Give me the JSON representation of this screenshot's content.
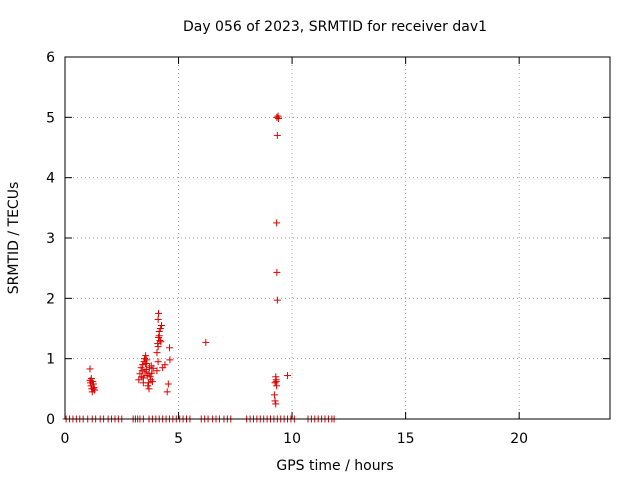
{
  "chart_data": {
    "type": "scatter",
    "title": "Day 056 of 2023, SRMTID for receiver dav1",
    "xlabel": "GPS time / hours",
    "ylabel": "SRMTID / TECUs",
    "xlim": [
      0,
      24
    ],
    "ylim": [
      0,
      6
    ],
    "xticks": [
      0,
      5,
      10,
      15,
      20
    ],
    "yticks": [
      0,
      1,
      2,
      3,
      4,
      5,
      6
    ],
    "grid": true,
    "marker": "+",
    "series": [
      {
        "name": "SRMTID",
        "color": "#dd0000",
        "points": [
          [
            0.05,
            0
          ],
          [
            0.2,
            0
          ],
          [
            0.35,
            0
          ],
          [
            0.5,
            0
          ],
          [
            0.65,
            0
          ],
          [
            0.8,
            0
          ],
          [
            1.0,
            0
          ],
          [
            1.2,
            0
          ],
          [
            1.35,
            0
          ],
          [
            1.55,
            0
          ],
          [
            1.7,
            0
          ],
          [
            1.9,
            0
          ],
          [
            2.05,
            0
          ],
          [
            2.2,
            0
          ],
          [
            2.35,
            0
          ],
          [
            2.5,
            0
          ],
          [
            3.0,
            0
          ],
          [
            3.1,
            0
          ],
          [
            3.2,
            0
          ],
          [
            3.3,
            0
          ],
          [
            3.45,
            0
          ],
          [
            3.7,
            0
          ],
          [
            3.85,
            0
          ],
          [
            4.0,
            0
          ],
          [
            4.15,
            0
          ],
          [
            4.3,
            0
          ],
          [
            4.45,
            0
          ],
          [
            4.6,
            0
          ],
          [
            4.75,
            0
          ],
          [
            4.9,
            0
          ],
          [
            5.05,
            0
          ],
          [
            5.2,
            0
          ],
          [
            5.35,
            0
          ],
          [
            5.5,
            0
          ],
          [
            6.0,
            0
          ],
          [
            6.15,
            0
          ],
          [
            6.3,
            0
          ],
          [
            6.5,
            0
          ],
          [
            6.65,
            0
          ],
          [
            6.8,
            0
          ],
          [
            7.0,
            0
          ],
          [
            7.15,
            0
          ],
          [
            7.3,
            0
          ],
          [
            8.0,
            0
          ],
          [
            8.15,
            0
          ],
          [
            8.3,
            0
          ],
          [
            8.45,
            0
          ],
          [
            8.6,
            0
          ],
          [
            8.75,
            0
          ],
          [
            8.9,
            0
          ],
          [
            9.05,
            0
          ],
          [
            9.2,
            0
          ],
          [
            9.35,
            0
          ],
          [
            9.5,
            0
          ],
          [
            9.65,
            0
          ],
          [
            9.8,
            0
          ],
          [
            9.95,
            0
          ],
          [
            10.1,
            0
          ],
          [
            10.7,
            0
          ],
          [
            10.85,
            0
          ],
          [
            11.0,
            0
          ],
          [
            11.15,
            0
          ],
          [
            11.3,
            0
          ],
          [
            11.45,
            0
          ],
          [
            11.6,
            0
          ],
          [
            11.75,
            0
          ],
          [
            11.85,
            0
          ],
          [
            1.1,
            0.83
          ],
          [
            1.12,
            0.6
          ],
          [
            1.15,
            0.55
          ],
          [
            1.18,
            0.5
          ],
          [
            1.2,
            0.45
          ],
          [
            1.22,
            0.62
          ],
          [
            1.25,
            0.58
          ],
          [
            1.28,
            0.52
          ],
          [
            1.3,
            0.48
          ],
          [
            1.1,
            0.64
          ],
          [
            1.16,
            0.67
          ],
          [
            1.24,
            0.5
          ],
          [
            3.25,
            0.65
          ],
          [
            3.3,
            0.75
          ],
          [
            3.35,
            0.85
          ],
          [
            3.38,
            0.7
          ],
          [
            3.4,
            0.8
          ],
          [
            3.42,
            0.9
          ],
          [
            3.45,
            0.68
          ],
          [
            3.48,
            0.95
          ],
          [
            3.5,
            1.0
          ],
          [
            3.52,
            0.78
          ],
          [
            3.55,
            1.05
          ],
          [
            3.58,
            0.82
          ],
          [
            3.6,
            0.92
          ],
          [
            3.62,
            0.72
          ],
          [
            3.65,
            0.55
          ],
          [
            3.68,
            0.6
          ],
          [
            3.7,
            0.5
          ],
          [
            3.72,
            0.85
          ],
          [
            3.75,
            0.7
          ],
          [
            3.78,
            0.65
          ],
          [
            3.8,
            0.88
          ],
          [
            3.82,
            0.76
          ],
          [
            3.85,
            0.62
          ],
          [
            3.88,
            0.84
          ],
          [
            3.55,
            0.92
          ],
          [
            3.45,
            0.6
          ],
          [
            3.6,
            0.98
          ],
          [
            3.7,
            0.75
          ],
          [
            4.05,
            1.1
          ],
          [
            4.08,
            1.25
          ],
          [
            4.1,
            1.2
          ],
          [
            4.12,
            1.35
          ],
          [
            4.15,
            1.45
          ],
          [
            4.18,
            1.3
          ],
          [
            4.1,
            1.65
          ],
          [
            4.12,
            1.75
          ],
          [
            4.2,
            1.5
          ],
          [
            4.22,
            1.28
          ],
          [
            4.25,
            1.55
          ],
          [
            4.15,
            1.38
          ],
          [
            4.05,
            0.8
          ],
          [
            4.1,
            0.95
          ],
          [
            4.3,
            0.85
          ],
          [
            4.4,
            0.9
          ],
          [
            4.6,
            1.18
          ],
          [
            4.62,
            0.98
          ],
          [
            4.55,
            0.58
          ],
          [
            4.5,
            0.45
          ],
          [
            6.2,
            1.27
          ],
          [
            9.25,
            0.6
          ],
          [
            9.28,
            0.7
          ],
          [
            9.3,
            0.65
          ],
          [
            9.32,
            0.55
          ],
          [
            9.22,
            0.4
          ],
          [
            9.25,
            0.3
          ],
          [
            9.28,
            0.25
          ],
          [
            9.3,
            0.62
          ],
          [
            9.35,
            1.97
          ],
          [
            9.33,
            2.43
          ],
          [
            9.32,
            3.25
          ],
          [
            9.35,
            4.7
          ],
          [
            9.33,
            5.0
          ],
          [
            9.38,
            5.02
          ],
          [
            9.4,
            4.98
          ],
          [
            9.8,
            0.72
          ]
        ]
      }
    ]
  }
}
